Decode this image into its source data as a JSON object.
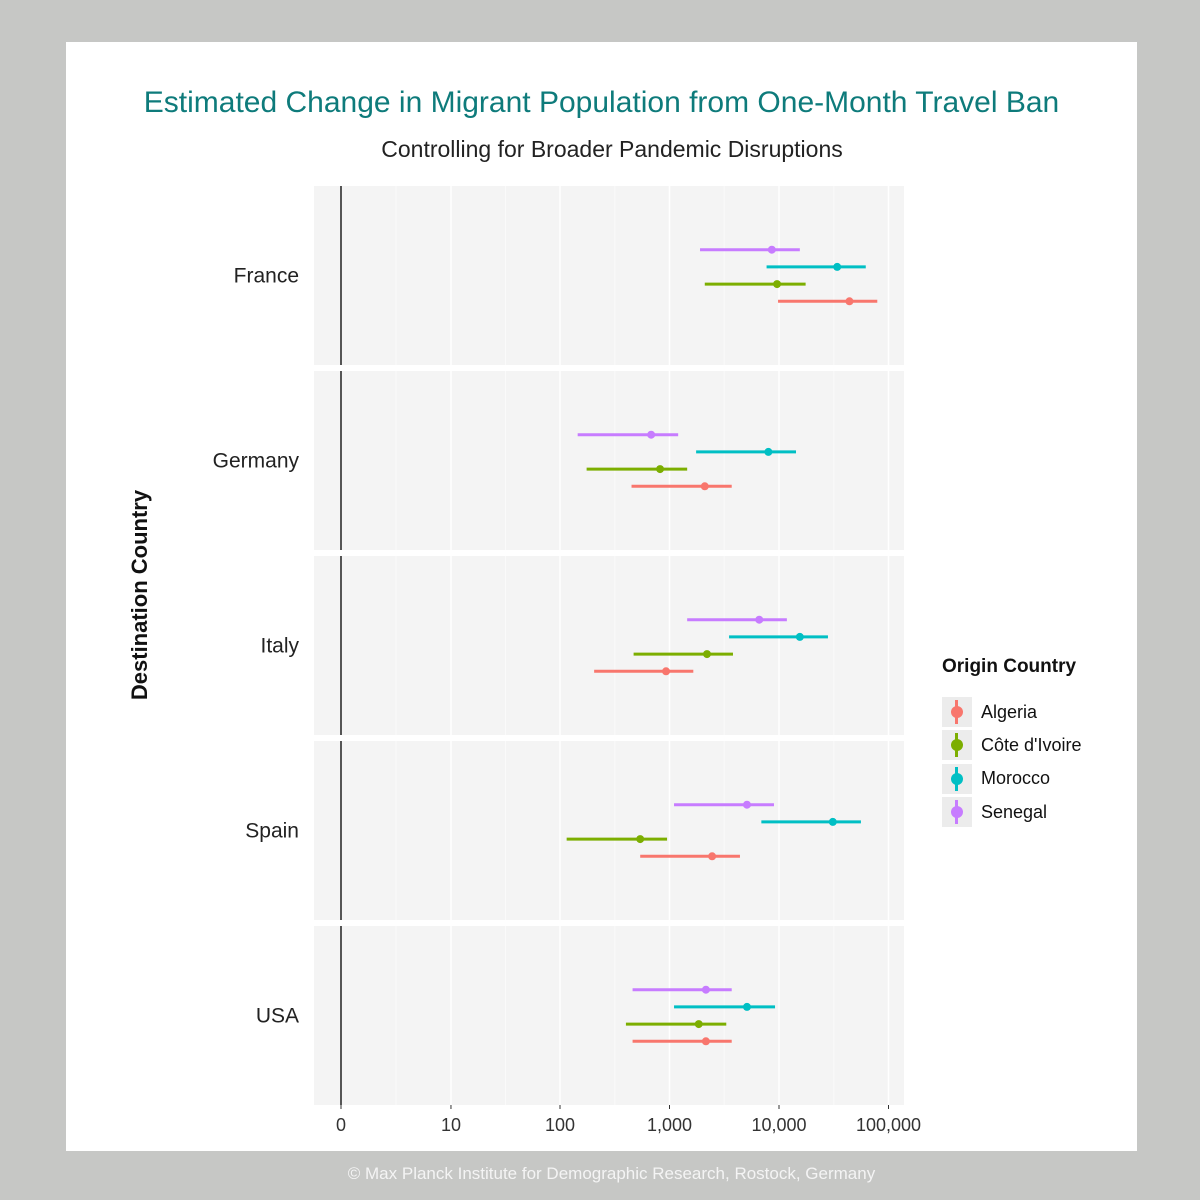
{
  "footer": "© Max Planck Institute for Demographic Research, Rostock, Germany",
  "chart_data": {
    "type": "scatter",
    "subtype": "point-range (estimate with interval), faceted",
    "title": "Estimated Change in Migrant Population from One-Month Travel Ban",
    "subtitle": "Controlling for Broader Pandemic Disruptions",
    "xlabel": "",
    "ylabel": "Destination Country",
    "x_scale": "pseudo-log (base 10)",
    "xlim": [
      -2,
      150000
    ],
    "x_ticks": [
      0,
      10,
      100,
      1000,
      10000,
      100000
    ],
    "x_tick_labels": [
      "0",
      "10",
      "100",
      "1,000",
      "10,000",
      "100,000"
    ],
    "grid": true,
    "reference_line_x": 0,
    "legend": {
      "title": "Origin Country",
      "position": "right",
      "entries": [
        {
          "name": "Algeria",
          "color": "#F8766D"
        },
        {
          "name": "Côte d'Ivoire",
          "color": "#7CAE00"
        },
        {
          "name": "Morocco",
          "color": "#00BFC4"
        },
        {
          "name": "Senegal",
          "color": "#C77CFF"
        }
      ]
    },
    "facets": [
      {
        "label": "France",
        "points": [
          {
            "origin": "Senegal",
            "estimate": 8600,
            "low": 1900,
            "high": 15500
          },
          {
            "origin": "Morocco",
            "estimate": 34000,
            "low": 7700,
            "high": 62000
          },
          {
            "origin": "Côte d'Ivoire",
            "estimate": 9600,
            "low": 2100,
            "high": 17500
          },
          {
            "origin": "Algeria",
            "estimate": 44000,
            "low": 9800,
            "high": 79000
          }
        ]
      },
      {
        "label": "Germany",
        "points": [
          {
            "origin": "Senegal",
            "estimate": 680,
            "low": 145,
            "high": 1200
          },
          {
            "origin": "Morocco",
            "estimate": 8000,
            "low": 1750,
            "high": 14300
          },
          {
            "origin": "Côte d'Ivoire",
            "estimate": 820,
            "low": 175,
            "high": 1450
          },
          {
            "origin": "Algeria",
            "estimate": 2100,
            "low": 450,
            "high": 3700
          }
        ]
      },
      {
        "label": "Italy",
        "points": [
          {
            "origin": "Senegal",
            "estimate": 6600,
            "low": 1450,
            "high": 11800
          },
          {
            "origin": "Morocco",
            "estimate": 15500,
            "low": 3500,
            "high": 28000
          },
          {
            "origin": "Côte d'Ivoire",
            "estimate": 2200,
            "low": 470,
            "high": 3800
          },
          {
            "origin": "Algeria",
            "estimate": 930,
            "low": 205,
            "high": 1650
          }
        ]
      },
      {
        "label": "Spain",
        "points": [
          {
            "origin": "Senegal",
            "estimate": 5100,
            "low": 1100,
            "high": 9000
          },
          {
            "origin": "Morocco",
            "estimate": 31000,
            "low": 6900,
            "high": 56000
          },
          {
            "origin": "Côte d'Ivoire",
            "estimate": 540,
            "low": 115,
            "high": 950
          },
          {
            "origin": "Algeria",
            "estimate": 2450,
            "low": 540,
            "high": 4400
          }
        ]
      },
      {
        "label": "USA",
        "points": [
          {
            "origin": "Senegal",
            "estimate": 2150,
            "low": 460,
            "high": 3700
          },
          {
            "origin": "Morocco",
            "estimate": 5100,
            "low": 1100,
            "high": 9200
          },
          {
            "origin": "Côte d'Ivoire",
            "estimate": 1850,
            "low": 400,
            "high": 3300
          },
          {
            "origin": "Algeria",
            "estimate": 2150,
            "low": 460,
            "high": 3700
          }
        ]
      }
    ]
  }
}
